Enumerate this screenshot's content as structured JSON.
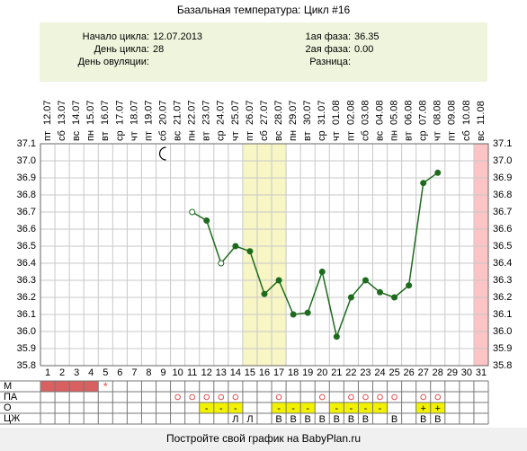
{
  "chart_data": {
    "type": "line",
    "title": "Базальная температура: Цикл #16",
    "x": [
      1,
      2,
      3,
      4,
      5,
      6,
      7,
      8,
      9,
      10,
      11,
      12,
      13,
      14,
      15,
      16,
      17,
      18,
      19,
      20,
      21,
      22,
      23,
      24,
      25,
      26,
      27,
      28,
      29,
      30,
      31
    ],
    "dates": [
      "12.07",
      "13.07",
      "14.07",
      "15.07",
      "16.07",
      "17.07",
      "18.07",
      "19.07",
      "20.07",
      "21.07",
      "22.07",
      "23.07",
      "24.07",
      "25.07",
      "26.07",
      "27.07",
      "28.07",
      "29.07",
      "30.07",
      "31.07",
      "01.08",
      "02.08",
      "03.08",
      "04.08",
      "05.08",
      "06.08",
      "07.08",
      "08.08",
      "09.08",
      "10.08",
      "11.08"
    ],
    "weekdays": [
      "пт",
      "сб",
      "вс",
      "пн",
      "вт",
      "ср",
      "чт",
      "пт",
      "сб",
      "вс",
      "пн",
      "вт",
      "ср",
      "чт",
      "пт",
      "сб",
      "вс",
      "пн",
      "вт",
      "ср",
      "чт",
      "пт",
      "сб",
      "вс",
      "пн",
      "вт",
      "ср",
      "чт",
      "пт",
      "сб",
      "вс"
    ],
    "series": [
      {
        "color": "#1e6b1e",
        "values": [
          null,
          null,
          null,
          null,
          null,
          null,
          null,
          null,
          null,
          null,
          36.7,
          36.65,
          36.4,
          36.5,
          36.47,
          36.22,
          36.3,
          36.1,
          36.11,
          36.35,
          35.97,
          36.2,
          36.3,
          36.23,
          36.2,
          36.27,
          36.87,
          36.93,
          null,
          null,
          null
        ]
      }
    ],
    "hollow_points": [
      11,
      13
    ],
    "ylim": [
      35.8,
      37.1
    ],
    "yticks": [
      35.8,
      35.9,
      {
        "value": 36,
        "label": "36.0"
      },
      36.1,
      36.2,
      36.3,
      36.4,
      36.5,
      36.6,
      36.7,
      36.8,
      36.9,
      {
        "value": 37,
        "label": "37.0"
      },
      37.1
    ],
    "grid": true,
    "fertile_band": [
      15,
      17
    ],
    "marked_day": 31,
    "moon_day": 9
  },
  "info": [
    {
      "label": "Начало цикла:",
      "value": "12.07.2013"
    },
    {
      "label": "День цикла:",
      "value": "28"
    },
    {
      "label": "День овуляции:"
    }
  ],
  "info_right": [
    {
      "label": "1ая фаза:",
      "value": "36.35"
    },
    {
      "label": "2ая фаза:",
      "value": "0.00"
    },
    {
      "label": "Разница:"
    }
  ],
  "cycle_table": {
    "rows": [
      {
        "label": "М",
        "fill_days": [
          1,
          2,
          3,
          4
        ],
        "cells": [
          null,
          null,
          null,
          null,
          "*",
          null,
          null,
          null,
          null,
          null,
          null,
          null,
          null,
          null,
          null,
          null,
          null,
          null,
          null,
          null,
          null,
          null,
          null,
          null,
          null,
          null,
          null,
          null,
          null,
          null,
          null
        ]
      },
      {
        "label": "ПА",
        "circle_days": [
          10,
          11,
          12,
          13,
          14,
          17,
          20,
          22,
          23,
          24,
          25,
          27,
          28
        ]
      },
      {
        "label": "О",
        "cells": [
          null,
          null,
          null,
          null,
          null,
          null,
          null,
          null,
          null,
          null,
          null,
          "-",
          "-",
          "-",
          null,
          null,
          "-",
          "-",
          "-",
          null,
          "-",
          "-",
          "-",
          "-",
          null,
          null,
          "+",
          "+",
          null,
          null,
          null
        ]
      },
      {
        "label": "ЦЖ",
        "cells": [
          null,
          null,
          null,
          null,
          null,
          null,
          null,
          null,
          null,
          null,
          null,
          null,
          null,
          "Л",
          "Л",
          null,
          "В",
          "В",
          "В",
          "В",
          "В",
          "В",
          "В",
          null,
          "В",
          null,
          "В",
          "В",
          null,
          null,
          null
        ]
      }
    ]
  },
  "footer": "Постройте свой график на BabyPlan.ru"
}
